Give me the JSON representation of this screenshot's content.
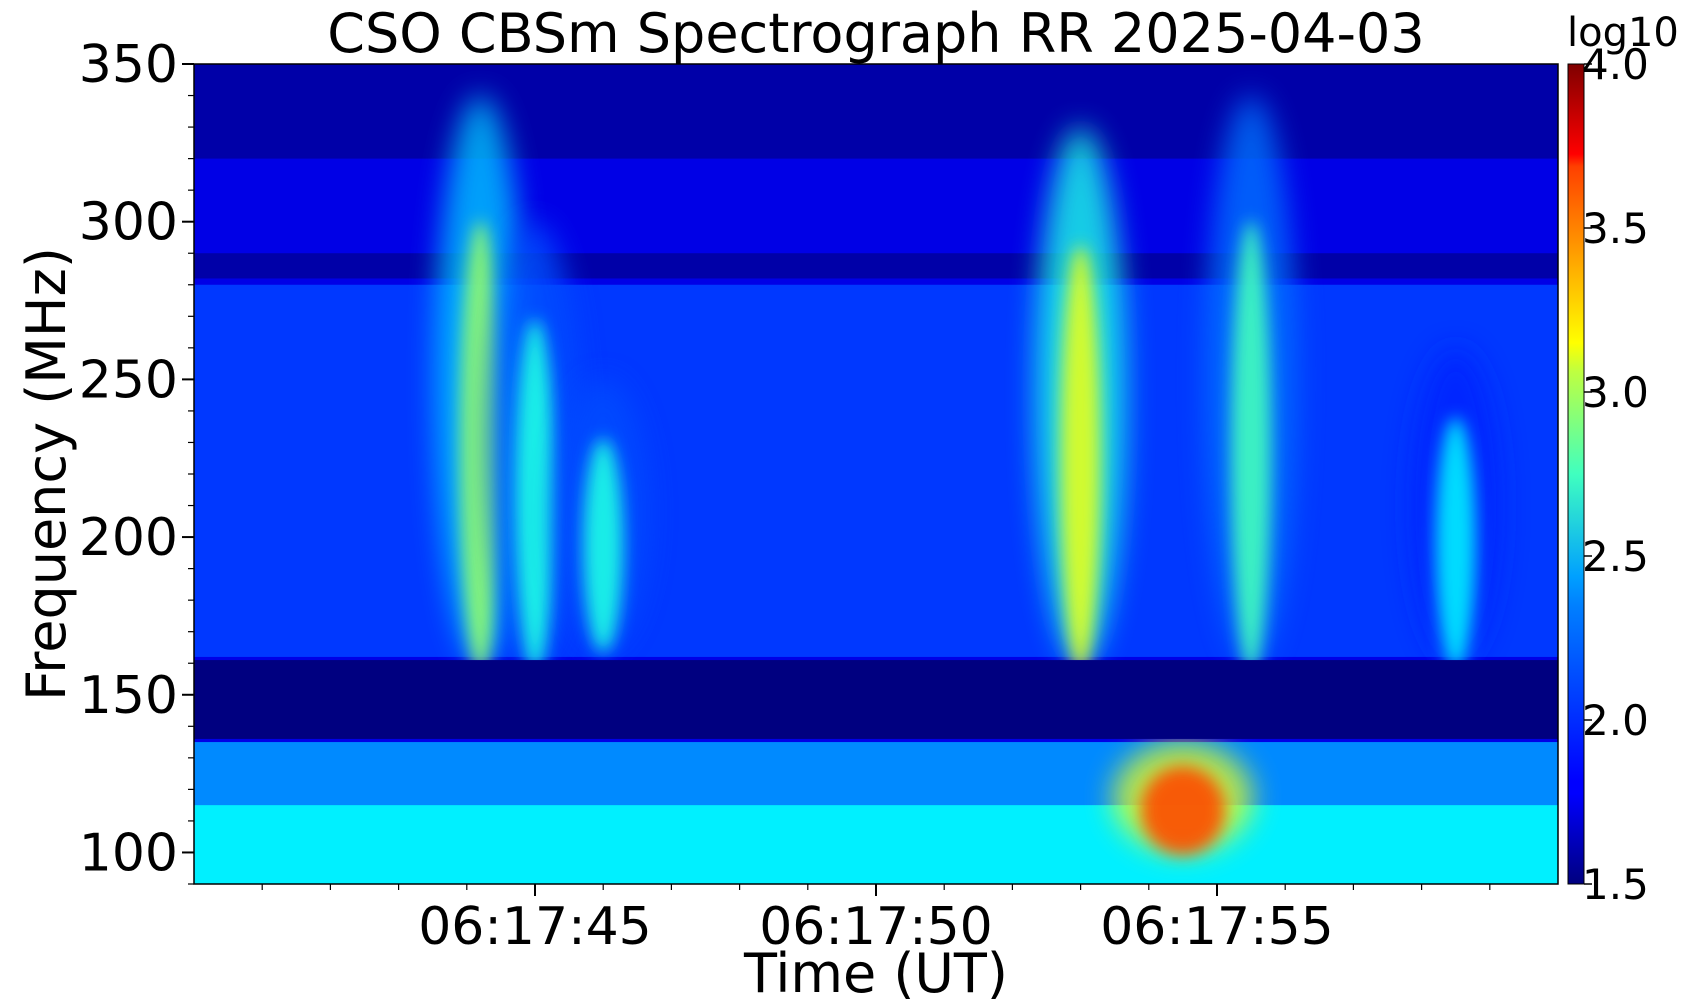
{
  "chart_data": {
    "type": "heatmap",
    "title": "CSO CBSm Spectrograph RR 2025-04-03",
    "xlabel": "Time (UT)",
    "ylabel": "Frequency (MHz)",
    "colorbar_label": "log10",
    "colormap": "jet",
    "x_ticks": [
      "06:17:45",
      "06:17:50",
      "06:17:55"
    ],
    "y_ticks": [
      100,
      150,
      200,
      250,
      300,
      350
    ],
    "ylim": [
      90,
      350
    ],
    "xlim": [
      "06:17:40",
      "06:18:00"
    ],
    "clim": [
      1.5,
      4.0
    ],
    "colorbar_ticks": [
      "1.5",
      "2.0",
      "2.5",
      "3.0",
      "3.5",
      "4.0"
    ],
    "features": {
      "background_level": 1.75,
      "gap_band_mhz": [
        136,
        161
      ],
      "gap_level": 1.5,
      "lower_band_level": 2.4,
      "upper_band_level": 1.95,
      "top_band_level": 1.6,
      "bursts": [
        {
          "time": "06:17:44.2",
          "freq_low": 160,
          "freq_high": 340,
          "peak": 2.8
        },
        {
          "time": "06:17:45.0",
          "freq_low": 160,
          "freq_high": 300,
          "peak": 2.5
        },
        {
          "time": "06:17:46.0",
          "freq_low": 165,
          "freq_high": 250,
          "peak": 2.5
        },
        {
          "time": "06:17:53.0",
          "freq_low": 160,
          "freq_high": 330,
          "peak": 3.0
        },
        {
          "time": "06:17:54.5",
          "freq_low": 100,
          "freq_high": 135,
          "peak": 3.5
        },
        {
          "time": "06:17:55.5",
          "freq_low": 160,
          "freq_high": 340,
          "peak": 2.6
        },
        {
          "time": "06:17:58.5",
          "freq_low": 160,
          "freq_high": 260,
          "peak": 2.4
        }
      ]
    }
  },
  "colors": {
    "background": "#ffffff",
    "text": "#000000"
  }
}
